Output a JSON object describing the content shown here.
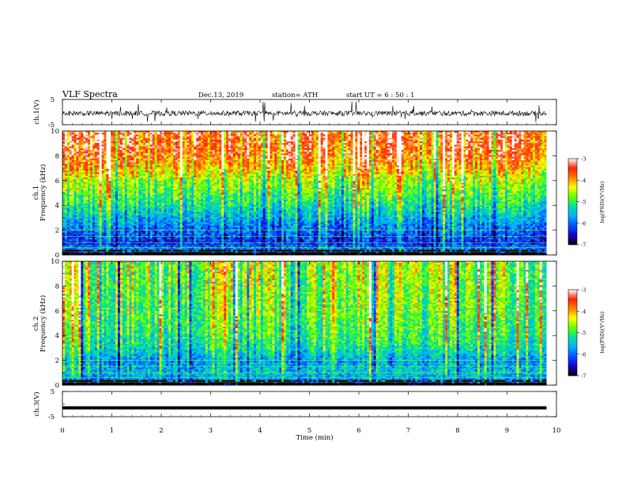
{
  "header": {
    "title": "VLF  Spectra",
    "date": "Dec.13, 2019",
    "station": "station= ATH",
    "start": "start  UT  =   6  : 50 : 1"
  },
  "chart_data": [
    {
      "type": "line",
      "name": "ch1-waveform",
      "ylabel": "ch.1(V)",
      "xlim": [
        0,
        10
      ],
      "ylim": [
        -5,
        5
      ],
      "yticks": [
        "5",
        "-5"
      ],
      "description_values": {
        "baseline_V": -0.5,
        "noise_amplitude_V": 1.0,
        "spike_max_V": 4.5,
        "spike_min_V": -4.0,
        "data_end_min": 9.8
      }
    },
    {
      "type": "heatmap",
      "name": "ch1-spectrogram",
      "ylabel_lines": [
        "ch.1",
        "Frequency  (kHz)"
      ],
      "xlim": [
        0,
        9.8
      ],
      "ylim": [
        0,
        10
      ],
      "yticks": [
        "0",
        "2",
        "4",
        "6",
        "8",
        "10"
      ],
      "colorbar": {
        "label": "log(PSD)(V²/Hz)",
        "range": [
          -7,
          -3
        ],
        "ticks": [
          "-3",
          "-4",
          "-5",
          "-6",
          "-7"
        ]
      },
      "bands_khz_to_logpsd": [
        [
          0.0,
          -7.0
        ],
        [
          0.4,
          -5.8
        ],
        [
          1.0,
          -6.3
        ],
        [
          2.0,
          -6.0
        ],
        [
          3.0,
          -5.6
        ],
        [
          4.0,
          -5.2
        ],
        [
          5.0,
          -4.9
        ],
        [
          6.0,
          -4.6
        ],
        [
          7.0,
          -4.1
        ],
        [
          8.0,
          -3.7
        ],
        [
          10.0,
          -3.5
        ]
      ]
    },
    {
      "type": "heatmap",
      "name": "ch2-spectrogram",
      "ylabel_lines": [
        "ch.2",
        "Frequency  (kHz)"
      ],
      "xlim": [
        0,
        9.8
      ],
      "ylim": [
        0,
        10
      ],
      "yticks": [
        "0",
        "2",
        "4",
        "6",
        "8",
        "10"
      ],
      "colorbar": {
        "label": "log(PSD)(V²/Hz)",
        "range": [
          -7,
          -3
        ],
        "ticks": [
          "-3",
          "-4",
          "-5",
          "-6",
          "-7"
        ]
      },
      "bands_khz_to_logpsd": [
        [
          0.0,
          -7.0
        ],
        [
          0.4,
          -5.8
        ],
        [
          1.0,
          -5.5
        ],
        [
          2.0,
          -5.7
        ],
        [
          3.0,
          -5.2
        ],
        [
          4.0,
          -5.0
        ],
        [
          6.0,
          -4.8
        ],
        [
          8.0,
          -4.7
        ],
        [
          10.0,
          -4.6
        ]
      ]
    },
    {
      "type": "line",
      "name": "ch3-waveform",
      "ylabel": "ch.3(V)",
      "xlim": [
        0,
        10
      ],
      "ylim": [
        -5,
        5
      ],
      "yticks": [
        "5",
        "-5"
      ],
      "description_values": {
        "level_V": -1.5,
        "data_end_min": 9.8
      }
    }
  ],
  "xaxis": {
    "label": "Time  (min)",
    "ticks": [
      "0",
      "1",
      "2",
      "3",
      "4",
      "5",
      "6",
      "7",
      "8",
      "9",
      "10"
    ]
  },
  "colors": {
    "colormap": [
      "#000000",
      "#1a00cc",
      "#0050ff",
      "#00b0ff",
      "#00e0a0",
      "#60ff00",
      "#ffff00",
      "#ff8000",
      "#ff2000",
      "#ffffff"
    ],
    "axis": "#000000",
    "background": "#ffffff"
  }
}
